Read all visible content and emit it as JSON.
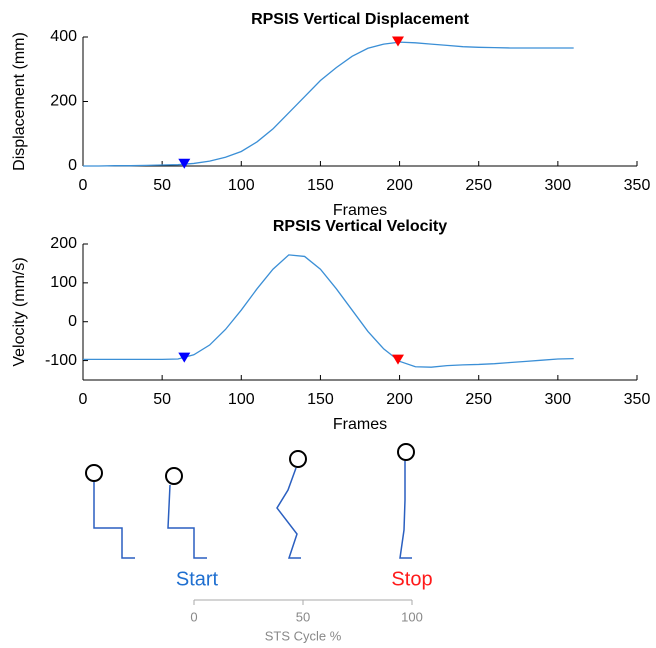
{
  "chart_data": [
    {
      "type": "line",
      "title": "RPSIS Vertical Displacement",
      "x_label": "Frames",
      "y_label": "Displacement (mm)",
      "xlim": [
        0,
        350
      ],
      "xticks": [
        0,
        50,
        100,
        150,
        200,
        250,
        300,
        350
      ],
      "ylim": [
        0,
        400
      ],
      "yticks": [
        0,
        200,
        400
      ],
      "x": [
        0,
        10,
        20,
        30,
        40,
        50,
        60,
        70,
        80,
        90,
        100,
        110,
        120,
        130,
        140,
        150,
        160,
        170,
        180,
        190,
        200,
        210,
        220,
        230,
        240,
        250,
        260,
        270,
        280,
        290,
        300,
        310
      ],
      "series": [
        {
          "color": "#3b8fd6",
          "values": [
            0,
            0,
            1,
            1,
            2,
            3,
            4,
            8,
            15,
            27,
            45,
            75,
            115,
            165,
            215,
            265,
            305,
            340,
            365,
            378,
            384,
            382,
            378,
            374,
            370,
            368,
            367,
            366,
            366,
            366,
            366,
            366
          ]
        }
      ],
      "markers": [
        {
          "x": 64,
          "y": 4,
          "color": "#0000ff"
        },
        {
          "x": 199,
          "y": 383,
          "color": "#ff0000"
        }
      ]
    },
    {
      "type": "line",
      "title": "RPSIS Vertical Velocity",
      "x_label": "Frames",
      "y_label": "Velocity (mm/s)",
      "xlim": [
        0,
        350
      ],
      "xticks": [
        0,
        50,
        100,
        150,
        200,
        250,
        300,
        350
      ],
      "ylim": [
        -150,
        200
      ],
      "yticks": [
        -100,
        0,
        100,
        200
      ],
      "x": [
        0,
        10,
        20,
        30,
        40,
        50,
        60,
        70,
        80,
        90,
        100,
        110,
        120,
        130,
        140,
        150,
        160,
        170,
        180,
        190,
        200,
        210,
        220,
        230,
        240,
        250,
        260,
        270,
        280,
        290,
        300,
        310
      ],
      "series": [
        {
          "color": "#3b8fd6",
          "values": [
            -97,
            -97,
            -97,
            -97,
            -97,
            -97,
            -96,
            -85,
            -60,
            -20,
            30,
            85,
            135,
            172,
            168,
            135,
            85,
            30,
            -25,
            -70,
            -102,
            -116,
            -117,
            -113,
            -111,
            -110,
            -108,
            -105,
            -102,
            -99,
            -96,
            -95
          ]
        }
      ],
      "markers": [
        {
          "x": 64,
          "y": -95,
          "color": "#0000ff"
        },
        {
          "x": 199,
          "y": -100,
          "color": "#ff0000"
        }
      ]
    }
  ],
  "cycle_axis": {
    "start_label": "Start",
    "stop_label": "Stop",
    "label": "STS Cycle %",
    "xlim": [
      0,
      100
    ],
    "xticks": [
      0,
      50,
      100
    ]
  }
}
